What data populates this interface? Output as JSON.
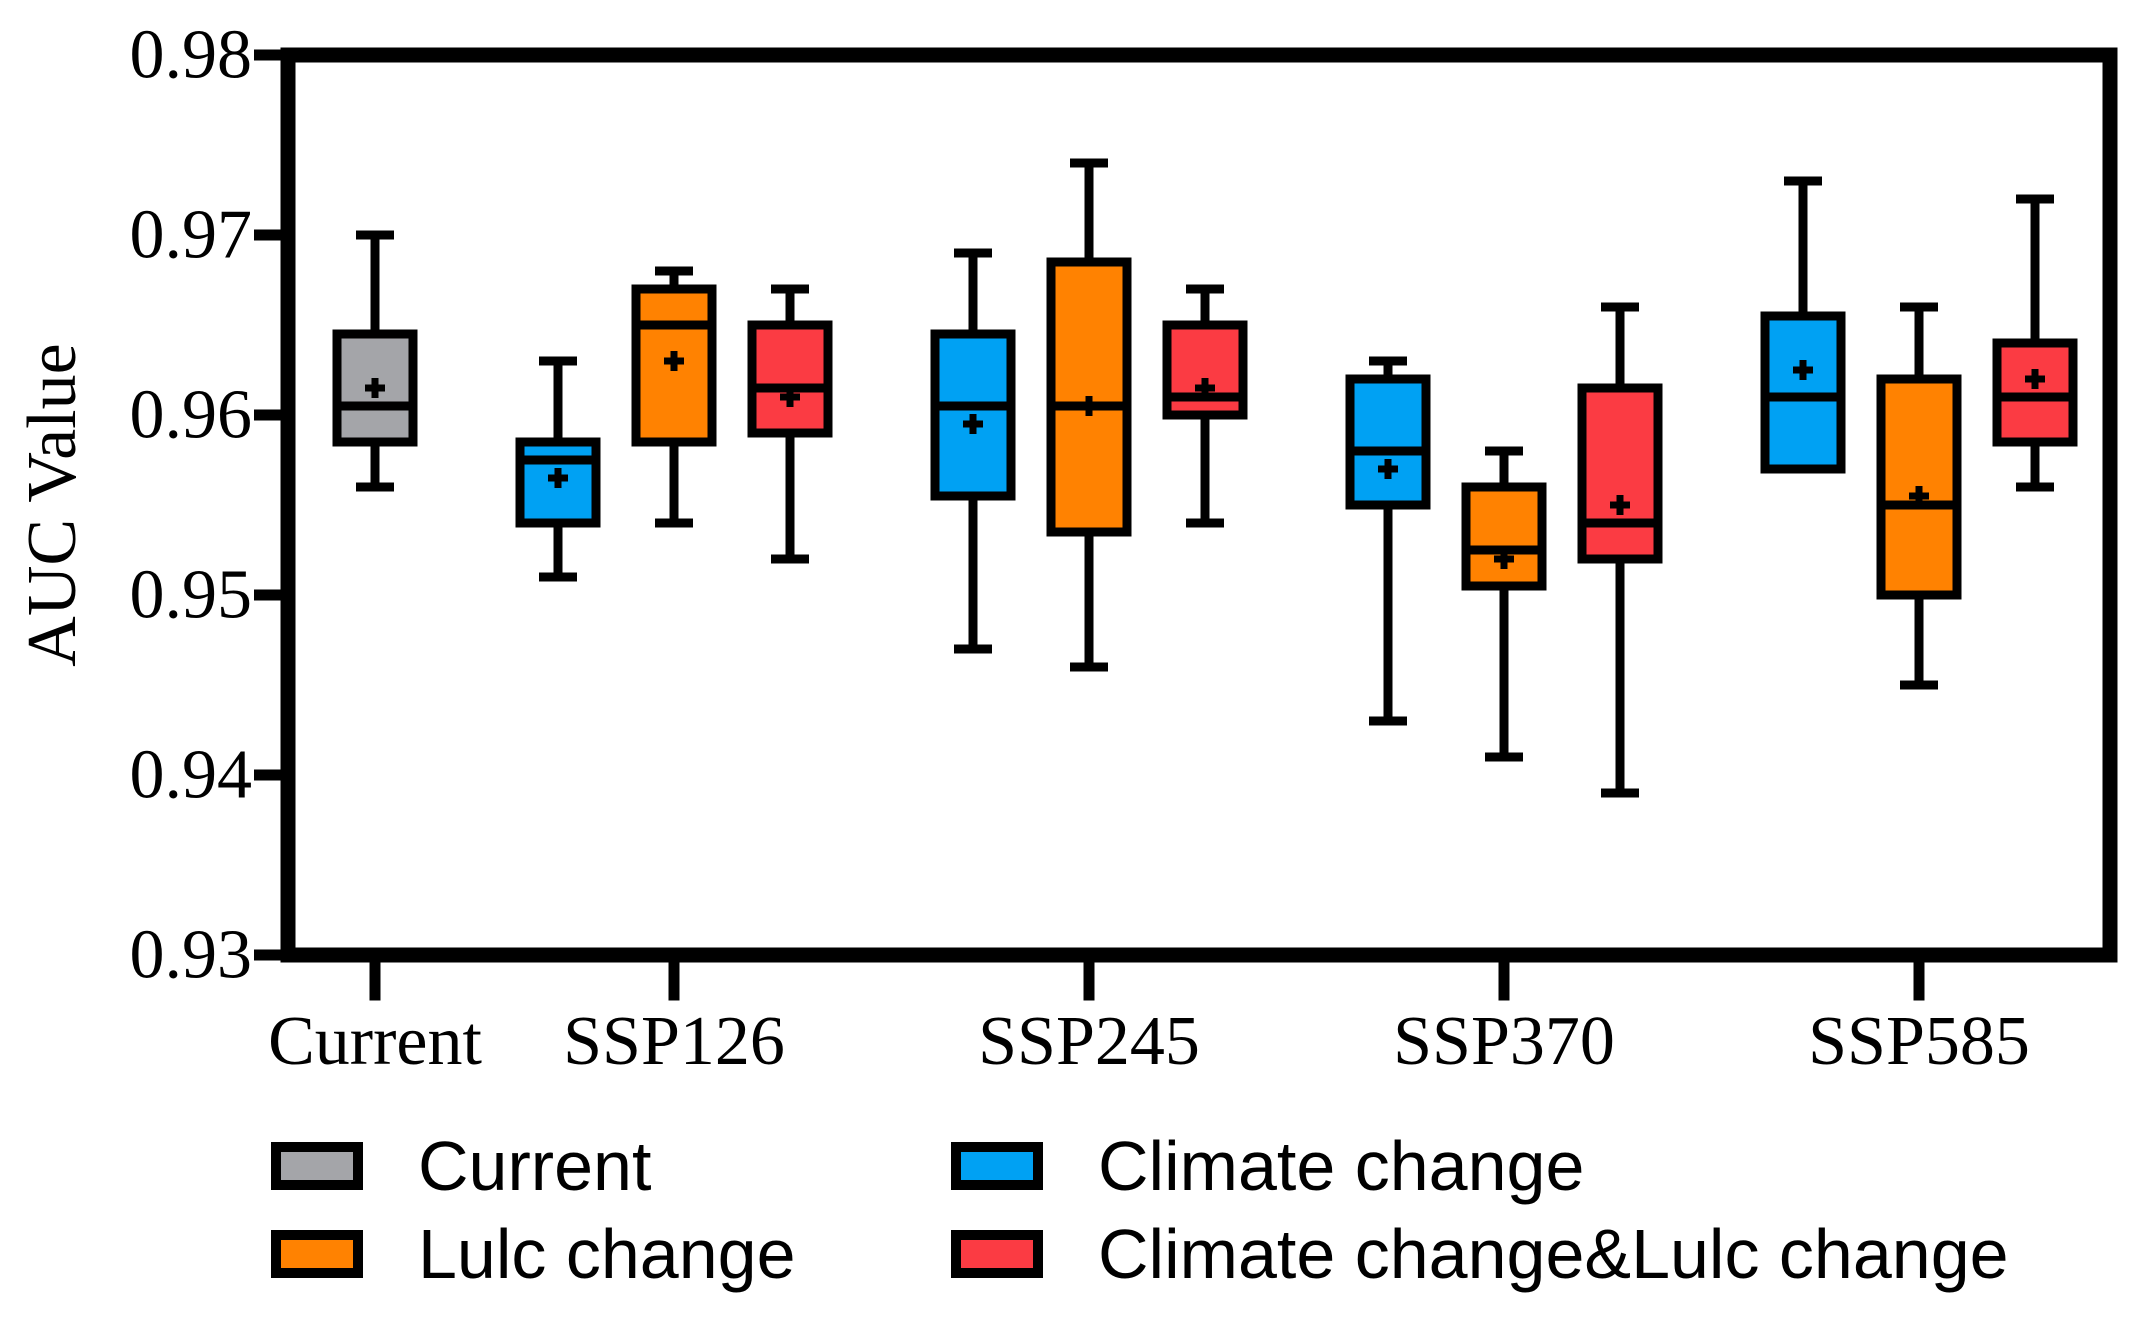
{
  "chart_data": {
    "type": "box",
    "title": "",
    "xlabel": "",
    "ylabel": "AUC Value",
    "ylim": [
      0.93,
      0.98
    ],
    "yticks": [
      0.98,
      0.97,
      0.96,
      0.95,
      0.94,
      0.93
    ],
    "ytick_labels": [
      "0.98",
      "0.97",
      "0.96",
      "0.95",
      "0.94",
      "0.93"
    ],
    "groups": [
      "Current",
      "SSP126",
      "SSP245",
      "SSP370",
      "SSP585"
    ],
    "grid": "off",
    "legend_position": "bottom",
    "colors": {
      "black": "#000000",
      "background": "#ffffff"
    },
    "series": [
      {
        "name": "Current",
        "color": "#A4A5A9"
      },
      {
        "name": "Climate change",
        "color": "#00A1F3"
      },
      {
        "name": "Lulc change",
        "color": "#FF8201"
      },
      {
        "name": "Climate change&Lulc change",
        "color": "#FB3B43"
      }
    ],
    "boxes": [
      {
        "group": "Current",
        "series": "Current",
        "min": 0.956,
        "q1": 0.9585,
        "median": 0.9605,
        "q3": 0.9645,
        "max": 0.97,
        "mean": 0.9615
      },
      {
        "group": "SSP126",
        "series": "Climate change",
        "min": 0.951,
        "q1": 0.954,
        "median": 0.9575,
        "q3": 0.9585,
        "max": 0.963,
        "mean": 0.9565
      },
      {
        "group": "SSP126",
        "series": "Lulc change",
        "min": 0.954,
        "q1": 0.9585,
        "median": 0.965,
        "q3": 0.967,
        "max": 0.968,
        "mean": 0.963
      },
      {
        "group": "SSP126",
        "series": "Climate change&Lulc change",
        "min": 0.952,
        "q1": 0.959,
        "median": 0.9615,
        "q3": 0.965,
        "max": 0.967,
        "mean": 0.961
      },
      {
        "group": "SSP245",
        "series": "Climate change",
        "min": 0.947,
        "q1": 0.9555,
        "median": 0.9605,
        "q3": 0.9645,
        "max": 0.969,
        "mean": 0.9595
      },
      {
        "group": "SSP245",
        "series": "Lulc change",
        "min": 0.946,
        "q1": 0.9535,
        "median": 0.9605,
        "q3": 0.9685,
        "max": 0.974,
        "mean": 0.9605
      },
      {
        "group": "SSP245",
        "series": "Climate change&Lulc change",
        "min": 0.954,
        "q1": 0.96,
        "median": 0.961,
        "q3": 0.965,
        "max": 0.967,
        "mean": 0.9615
      },
      {
        "group": "SSP370",
        "series": "Climate change",
        "min": 0.943,
        "q1": 0.955,
        "median": 0.958,
        "q3": 0.962,
        "max": 0.963,
        "mean": 0.957
      },
      {
        "group": "SSP370",
        "series": "Lulc change",
        "min": 0.941,
        "q1": 0.9505,
        "median": 0.9525,
        "q3": 0.956,
        "max": 0.958,
        "mean": 0.952
      },
      {
        "group": "SSP370",
        "series": "Climate change&Lulc change",
        "min": 0.939,
        "q1": 0.952,
        "median": 0.954,
        "q3": 0.9615,
        "max": 0.966,
        "mean": 0.955
      },
      {
        "group": "SSP585",
        "series": "Climate change",
        "min": 0.957,
        "q1": 0.957,
        "median": 0.961,
        "q3": 0.9655,
        "max": 0.973,
        "mean": 0.9625
      },
      {
        "group": "SSP585",
        "series": "Lulc change",
        "min": 0.945,
        "q1": 0.95,
        "median": 0.955,
        "q3": 0.962,
        "max": 0.966,
        "mean": 0.9555
      },
      {
        "group": "SSP585",
        "series": "Climate change&Lulc change",
        "min": 0.956,
        "q1": 0.9585,
        "median": 0.961,
        "q3": 0.964,
        "max": 0.972,
        "mean": 0.962
      }
    ],
    "legend": {
      "rows": [
        [
          "Current",
          "Climate change"
        ],
        [
          "Lulc change",
          "Climate change&Lulc change"
        ]
      ]
    }
  }
}
